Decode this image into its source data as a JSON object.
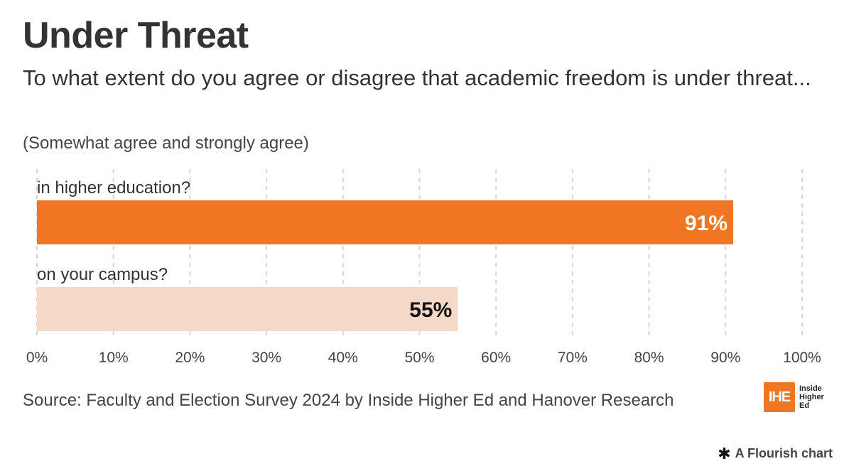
{
  "header": {
    "title": "Under Threat",
    "subtitle": "To what extent do you agree or disagree that academic freedom is under threat...",
    "note": "(Somewhat agree and strongly agree)"
  },
  "chart_data": {
    "type": "bar",
    "orientation": "horizontal",
    "categories": [
      "in higher education?",
      "on your campus?"
    ],
    "values": [
      91,
      55
    ],
    "value_labels": [
      "91%",
      "55%"
    ],
    "bar_colors": [
      "#ef7622",
      "#f4d9c9"
    ],
    "label_colors": [
      "#ffffff",
      "#111111"
    ],
    "xlim": [
      0,
      100
    ],
    "x_ticks": [
      0,
      10,
      20,
      30,
      40,
      50,
      60,
      70,
      80,
      90,
      100
    ],
    "x_tick_labels": [
      "0%",
      "10%",
      "20%",
      "30%",
      "40%",
      "50%",
      "60%",
      "70%",
      "80%",
      "90%",
      "100%"
    ],
    "grid": "vertical dashed"
  },
  "footer": {
    "source": "Source: Faculty and Election Survey 2024 by Inside Higher Ed and Hanover Research",
    "logo_mark": "IHE",
    "logo_text": "Inside Higher Ed",
    "credit": "A Flourish chart",
    "credit_icon": "flourish-asterisk-icon"
  }
}
